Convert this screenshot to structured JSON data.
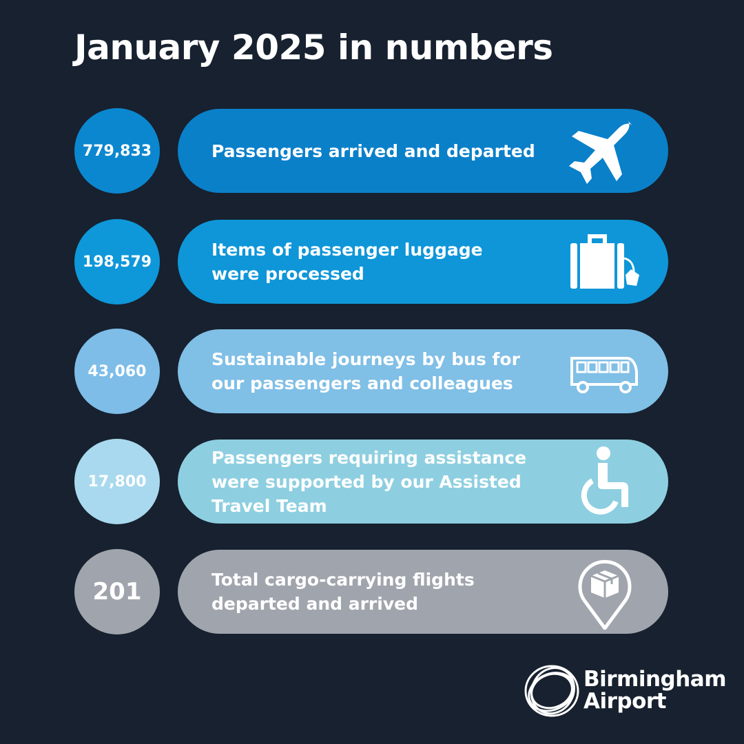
{
  "title": "January 2025 in numbers",
  "items": [
    {
      "number": "779,833",
      "lines": [
        "Passengers arrived and departed"
      ]
    },
    {
      "number": "198,579",
      "lines": [
        "Items of passenger luggage",
        "were processed"
      ]
    },
    {
      "number": "43,060",
      "lines": [
        "Sustainable journeys by bus for",
        "our passengers and colleagues"
      ]
    },
    {
      "number": "17,800",
      "lines": [
        "Passengers requiring assistance",
        "were supported by our Assisted",
        "Travel Team"
      ]
    },
    {
      "number": "201",
      "lines": [
        "Total cargo-carrying flights",
        "departed and arrived"
      ]
    }
  ],
  "logo": {
    "lines": [
      "Birmingham",
      "Airport"
    ]
  }
}
